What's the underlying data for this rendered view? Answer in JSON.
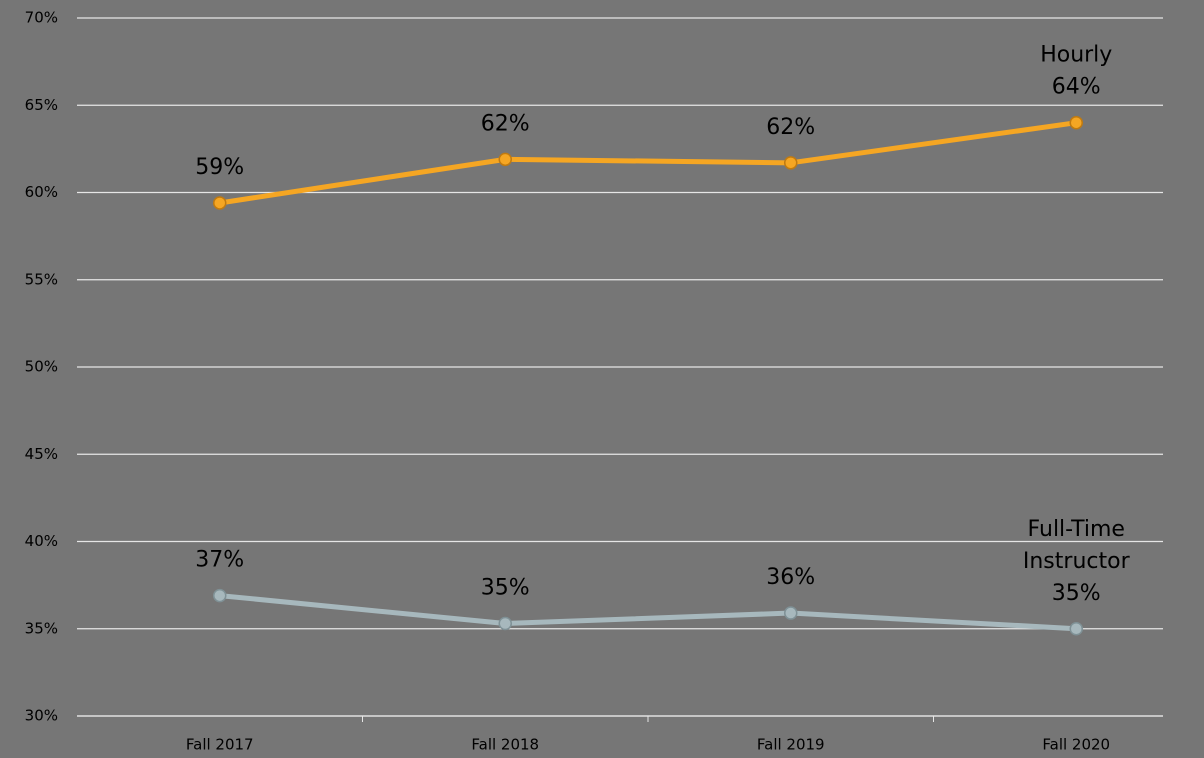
{
  "chart_data": {
    "type": "line",
    "categories": [
      "Fall 2017",
      "Fall 2018",
      "Fall 2019",
      "Fall 2020"
    ],
    "series": [
      {
        "name": "Hourly",
        "color": "#f5a623",
        "values": [
          59.4,
          61.9,
          61.7,
          64.0
        ],
        "value_labels": [
          "59%",
          "62%",
          "62%",
          "64%"
        ]
      },
      {
        "name": "Full-Time Instructor",
        "color": "#a7b8bd",
        "values": [
          36.9,
          35.3,
          35.9,
          35.0
        ],
        "value_labels": [
          "37%",
          "35%",
          "36%",
          "35%"
        ]
      }
    ],
    "ylim": [
      30,
      70
    ],
    "yticks": [
      {
        "value": 30,
        "label": "30%"
      },
      {
        "value": 35,
        "label": "35%"
      },
      {
        "value": 40,
        "label": "40%"
      },
      {
        "value": 45,
        "label": "45%"
      },
      {
        "value": 50,
        "label": "50%"
      },
      {
        "value": 55,
        "label": "55%"
      },
      {
        "value": 60,
        "label": "60%"
      },
      {
        "value": 65,
        "label": "65%"
      },
      {
        "value": 70,
        "label": "70%"
      }
    ],
    "grid": true
  }
}
